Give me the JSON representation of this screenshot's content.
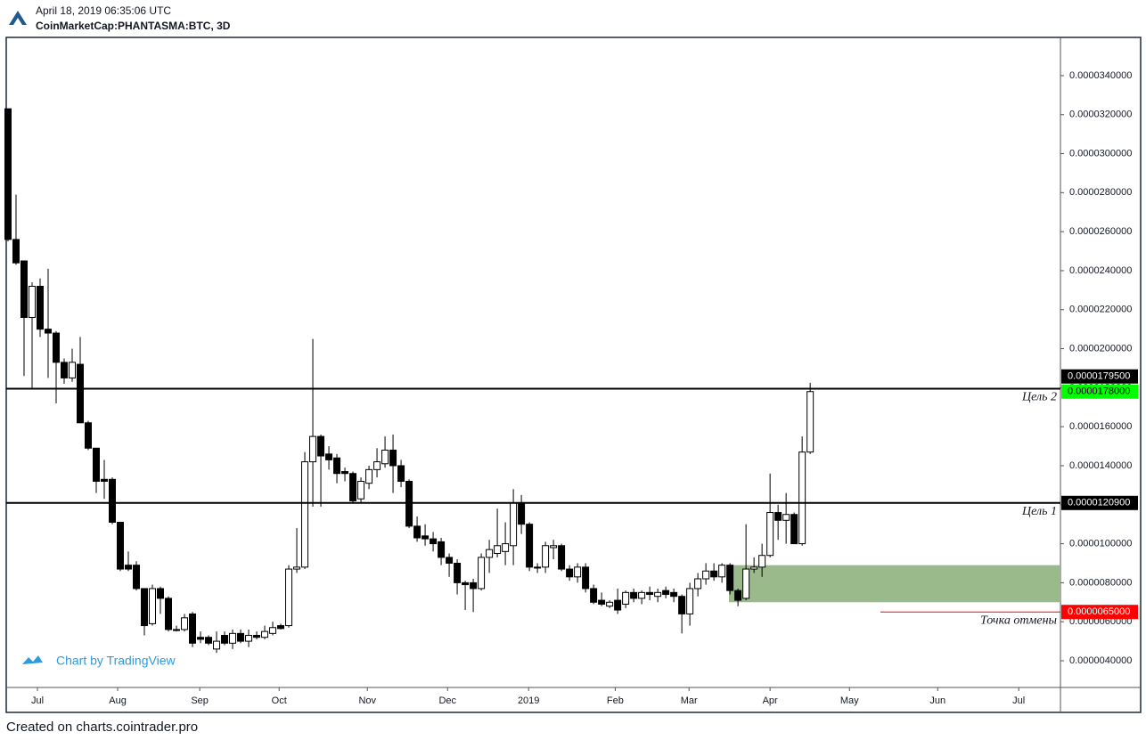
{
  "header": {
    "datetime": "April 18, 2019 06:35:06 UTC",
    "symbol": "CoinMarketCap:PHANTASMA:BTC, 3D"
  },
  "watermark": "Chart by TradingView",
  "footer": "Created on charts.cointrader.pro",
  "chart_data": {
    "type": "candlestick",
    "open": [
      3.23e-05,
      2.56e-05,
      2.45e-05,
      2.16e-05,
      2.32e-05,
      2.1e-05,
      2.08e-05,
      1.93e-05,
      1.85e-05,
      1.92e-05,
      1.62e-05,
      1.49e-05,
      1.33e-05,
      1.33e-05,
      1.11e-05,
      8.9e-06,
      8.9e-06,
      7.7e-06,
      5.9e-06,
      7.7e-06,
      7.2e-06,
      5.6e-06,
      5.6e-06,
      6.4e-06,
      5.2e-06,
      5.2e-06,
      4.6e-06,
      5.3e-06,
      4.9e-06,
      5.4e-06,
      5e-06,
      5.3e-06,
      5.2e-06,
      5.4e-06,
      5.8e-06,
      5.8e-06,
      8.7e-06,
      8.8e-06,
      1.42e-05,
      1.55e-05,
      1.46e-05,
      1.44e-05,
      1.37e-05,
      1.36e-05,
      1.23e-05,
      1.31e-05,
      1.38e-05,
      1.41e-05,
      1.48e-05,
      1.4e-05,
      1.32e-05,
      1.09e-05,
      1.04e-05,
      1.025e-05,
      1.01e-05,
      9.3e-06,
      9e-06,
      8e-06,
      8e-06,
      7.7e-06,
      9.3e-06,
      9.5e-06,
      9.6e-06,
      9.9e-06,
      1.21e-05,
      1.1e-05,
      8.8e-06,
      8.8e-06,
      9.8e-06,
      9.9e-06,
      8.7e-06,
      8.3e-06,
      8.8e-06,
      7.7e-06,
      7.1e-06,
      6.8e-06,
      7.1e-06,
      6.9e-06,
      7.5e-06,
      7.2e-06,
      7.5e-06,
      7.3e-06,
      7.6e-06,
      7.5e-06,
      7.3e-06,
      6.4e-06,
      7.7e-06,
      8.2e-06,
      8.6e-06,
      8.3e-06,
      8.9e-06,
      7.6e-06,
      7.2e-06,
      8.7e-06,
      8.8e-06,
      9.4e-06,
      1.16e-05,
      1.12e-05,
      1.15e-05,
      1e-05,
      1.47e-05
    ],
    "high": [
      3.23e-05,
      2.79e-05,
      2.45e-05,
      2.34e-05,
      2.36e-05,
      2.41e-05,
      2.09e-05,
      1.95e-05,
      2e-05,
      2.06e-05,
      1.63e-05,
      1.49e-05,
      1.43e-05,
      1.34e-05,
      1.11e-05,
      9.6e-06,
      9.1e-06,
      7.7e-06,
      7.9e-06,
      7.8e-06,
      7.3e-06,
      5.8e-06,
      6.4e-06,
      6.5e-06,
      5.5e-06,
      5.3e-06,
      5.5e-06,
      5.5e-06,
      5.6e-06,
      5.6e-06,
      5.6e-06,
      5.5e-06,
      5.8e-06,
      6e-06,
      5.9e-06,
      8.9e-06,
      1.08e-05,
      1.47e-05,
      2.05e-05,
      1.56e-05,
      1.5e-05,
      1.46e-05,
      1.39e-05,
      1.37e-05,
      1.34e-05,
      1.4e-05,
      1.49e-05,
      1.55e-05,
      1.56e-05,
      1.43e-05,
      1.33e-05,
      1.14e-05,
      1.1e-05,
      1.06e-05,
      1.03e-05,
      9.5e-06,
      9.2e-06,
      8.1e-06,
      8.2e-06,
      9.5e-06,
      1.02e-05,
      1.18e-05,
      1.11e-05,
      1.28e-05,
      1.25e-05,
      1.11e-05,
      9e-06,
      1.01e-05,
      1.02e-05,
      1e-05,
      8.9e-06,
      9e-06,
      9e-06,
      7.9e-06,
      7.5e-06,
      7.1e-06,
      7.7e-06,
      7.6e-06,
      7.7e-06,
      7.6e-06,
      7.8e-06,
      7.7e-06,
      7.8e-06,
      7.7e-06,
      7.4e-06,
      8e-06,
      8.5e-06,
      9e-06,
      9e-06,
      9e-06,
      9e-06,
      7.7e-06,
      1.1e-05,
      9.3e-06,
      1e-05,
      1.36e-05,
      1.2e-05,
      1.26e-05,
      1.16e-05,
      1.55e-05,
      1.825e-05
    ],
    "low": [
      2.55e-05,
      2.43e-05,
      1.86e-05,
      1.79e-05,
      2.06e-05,
      1.85e-05,
      1.72e-05,
      1.82e-05,
      1.83e-05,
      1.62e-05,
      1.48e-05,
      1.26e-05,
      1.23e-05,
      1.1e-05,
      8.6e-06,
      8.6e-06,
      7.6e-06,
      5.3e-06,
      5.8e-06,
      6.4e-06,
      5.5e-06,
      5.5e-06,
      5.5e-06,
      4.7e-06,
      4.9e-06,
      4.8e-06,
      4.4e-06,
      4.8e-06,
      4.6e-06,
      4.9e-06,
      4.7e-06,
      5.1e-06,
      5.1e-06,
      5.3e-06,
      5.6e-06,
      5.7e-06,
      8.5e-06,
      8.7e-06,
      1.19e-05,
      1.19e-05,
      1.38e-05,
      1.31e-05,
      1.32e-05,
      1.21e-05,
      1.21e-05,
      1.28e-05,
      1.34e-05,
      1.39e-05,
      1.26e-05,
      1.29e-05,
      1.08e-05,
      1.01e-05,
      9.9e-06,
      9.6e-06,
      8.9e-06,
      8.3e-06,
      7.4e-06,
      6.6e-06,
      6.5e-06,
      7.6e-06,
      8.5e-06,
      9.3e-06,
      8.9e-06,
      8.9e-06,
      1.05e-05,
      8.6e-06,
      8.5e-06,
      8.5e-06,
      9.2e-06,
      8.6e-06,
      8.1e-06,
      8e-06,
      7.5e-06,
      6.9e-06,
      6.8e-06,
      6.7e-06,
      6.4e-06,
      6.7e-06,
      7e-06,
      6.9e-06,
      7.1e-06,
      7e-06,
      7.2e-06,
      7e-06,
      5.4e-06,
      5.8e-06,
      7.3e-06,
      7.9e-06,
      8.1e-06,
      8e-06,
      7.4e-06,
      6.8e-06,
      7.1e-06,
      8.5e-06,
      8.3e-06,
      9.3e-06,
      1.02e-05,
      1e-05,
      1e-05,
      9.9e-06,
      1.46e-05
    ],
    "close": [
      2.56e-05,
      2.44e-05,
      2.16e-05,
      2.32e-05,
      2.1e-05,
      2.08e-05,
      1.93e-05,
      1.85e-05,
      1.93e-05,
      1.62e-05,
      1.49e-05,
      1.32e-05,
      1.32e-05,
      1.11e-05,
      8.7e-06,
      8.7e-06,
      7.7e-06,
      5.8e-06,
      7.7e-06,
      7.2e-06,
      5.6e-06,
      5.55e-06,
      6.2e-06,
      4.9e-06,
      5.1e-06,
      4.9e-06,
      5e-06,
      4.9e-06,
      5.4e-06,
      5e-06,
      5.3e-06,
      5.2e-06,
      5.5e-06,
      5.7e-06,
      5.65e-06,
      8.7e-06,
      8.8e-06,
      1.42e-05,
      1.55e-05,
      1.45e-05,
      1.43e-05,
      1.36e-05,
      1.36e-05,
      1.22e-05,
      1.32e-05,
      1.38e-05,
      1.42e-05,
      1.48e-05,
      1.4e-05,
      1.32e-05,
      1.09e-05,
      1.03e-05,
      1.025e-05,
      1e-05,
      9.3e-06,
      9e-06,
      8e-06,
      7.9e-06,
      7.7e-06,
      9.3e-06,
      9.7e-06,
      9.9e-06,
      1e-05,
      1.21e-05,
      1.1e-05,
      8.8e-06,
      8.75e-06,
      9.9e-06,
      9.9e-06,
      8.7e-06,
      8.3e-06,
      8.8e-06,
      7.7e-06,
      7e-06,
      6.9e-06,
      7e-06,
      6.6e-06,
      7.5e-06,
      7.2e-06,
      7.5e-06,
      7.4e-06,
      7.5e-06,
      7.4e-06,
      7.3e-06,
      6.4e-06,
      7.7e-06,
      8.2e-06,
      8.6e-06,
      8.3e-06,
      8.9e-06,
      7.6e-06,
      7.1e-06,
      8.7e-06,
      8.8e-06,
      9.4e-06,
      1.16e-05,
      1.12e-05,
      1.15e-05,
      1e-05,
      1.47e-05,
      1.78e-05
    ],
    "xlim": [
      -0.22,
      131.2
    ],
    "xticks": [
      {
        "value": 3.67,
        "label": "Jul"
      },
      {
        "value": 13.67,
        "label": "Aug"
      },
      {
        "value": 23.9,
        "label": "Sep"
      },
      {
        "value": 33.8,
        "label": "Oct"
      },
      {
        "value": 44.8,
        "label": "Nov"
      },
      {
        "value": 54.8,
        "label": "Dec"
      },
      {
        "value": 64.9,
        "label": "2019"
      },
      {
        "value": 75.7,
        "label": "Feb"
      },
      {
        "value": 84.9,
        "label": "Mar"
      },
      {
        "value": 95,
        "label": "Apr"
      },
      {
        "value": 104.9,
        "label": "May"
      },
      {
        "value": 115.9,
        "label": "Jun"
      },
      {
        "value": 126,
        "label": "Jul"
      }
    ],
    "ylim": [
      2.63e-06,
      3.596e-05
    ],
    "yticks": [
      {
        "value": 4e-06,
        "label": "0.0000040000"
      },
      {
        "value": 6e-06,
        "label": "0.0000060000"
      },
      {
        "value": 8e-06,
        "label": "0.0000080000"
      },
      {
        "value": 1e-05,
        "label": "0.0000100000"
      },
      {
        "value": 1.2e-05,
        "label": "0.0000120000"
      },
      {
        "value": 1.4e-05,
        "label": "0.0000140000"
      },
      {
        "value": 1.6e-05,
        "label": "0.0000160000"
      },
      {
        "value": 1.8e-05,
        "label": "0.0000180000"
      },
      {
        "value": 2e-05,
        "label": "0.0000200000"
      },
      {
        "value": 2.2e-05,
        "label": "0.0000220000"
      },
      {
        "value": 2.4e-05,
        "label": "0.0000240000"
      },
      {
        "value": 2.6e-05,
        "label": "0.0000260000"
      },
      {
        "value": 2.8e-05,
        "label": "0.0000280000"
      },
      {
        "value": 3e-05,
        "label": "0.0000300000"
      },
      {
        "value": 3.2e-05,
        "label": "0.0000320000"
      },
      {
        "value": 3.4e-05,
        "label": "0.0000340000"
      }
    ],
    "up_color": "#ffffff",
    "down_color": "#000000",
    "levels": [
      {
        "value": 1.795e-05,
        "label": "0.0000179500",
        "annotation": "Цель 2",
        "color": "#000000"
      },
      {
        "value": 1.209e-05,
        "label": "0.0000120900",
        "annotation": "Цель 1",
        "color": "#000000"
      },
      {
        "value": 6.5e-06,
        "label": "0.0000065000",
        "annotation": "Точка отмены",
        "color": "#ff0000"
      }
    ],
    "zone": {
      "low": 7e-06,
      "high": 8.9e-06,
      "color": "#9aba8c"
    },
    "last_price": {
      "value": 1.78e-05,
      "label": "0.0000178000",
      "color": "#00ff00"
    }
  }
}
